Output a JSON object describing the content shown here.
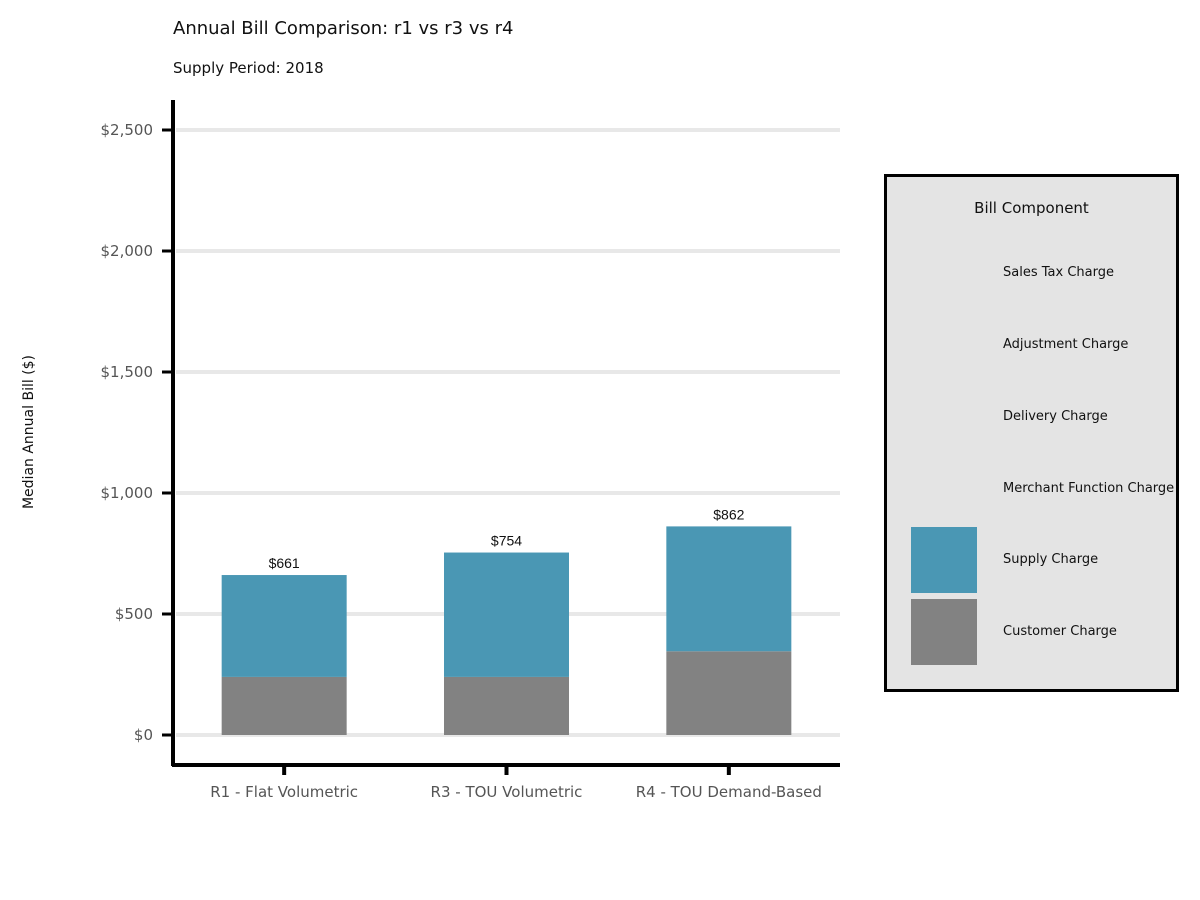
{
  "chart_data": {
    "type": "bar",
    "stacked": true,
    "title": "Annual Bill Comparison: r1 vs r3 vs r4",
    "subtitle": "Supply Period: 2018",
    "ylabel": "Median Annual Bill ($)",
    "xlabel": "",
    "ylim": [
      0,
      2600
    ],
    "yticks": [
      0,
      500,
      1000,
      1500,
      2000,
      2500
    ],
    "ytick_labels": [
      "$0",
      "$500",
      "$1,000",
      "$1,500",
      "$2,000",
      "$2,500"
    ],
    "grid": "horizontal",
    "categories": [
      "R1 - Flat Volumetric",
      "R3 - TOU Volumetric",
      "R4 - TOU Demand-Based"
    ],
    "series": [
      {
        "name": "Customer Charge",
        "color": "#828282",
        "values": [
          240,
          240,
          346
        ]
      },
      {
        "name": "Supply Charge",
        "color": "#4a97b4",
        "values": [
          421,
          514,
          516
        ]
      },
      {
        "name": "Merchant Function Charge",
        "color": "#d9c56a",
        "values": [
          0,
          0,
          0
        ]
      },
      {
        "name": "Delivery Charge",
        "color": "#2f5d7c",
        "values": [
          0,
          0,
          0
        ]
      },
      {
        "name": "Adjustment Charge",
        "color": "#b36b5a",
        "values": [
          0,
          0,
          0
        ]
      },
      {
        "name": "Sales Tax Charge",
        "color": "#7a9b63",
        "values": [
          0,
          0,
          0
        ]
      }
    ],
    "totals": [
      661,
      754,
      862
    ],
    "total_labels": [
      "$661",
      "$754",
      "$862"
    ],
    "legend": {
      "title": "Bill Component",
      "placement": "right",
      "items": [
        {
          "label": "Sales Tax Charge",
          "color": ""
        },
        {
          "label": "Adjustment Charge",
          "color": ""
        },
        {
          "label": "Delivery Charge",
          "color": ""
        },
        {
          "label": "Merchant Function Charge",
          "color": ""
        },
        {
          "label": "Supply Charge",
          "color": "#4a97b4"
        },
        {
          "label": "Customer Charge",
          "color": "#828282"
        }
      ]
    }
  }
}
